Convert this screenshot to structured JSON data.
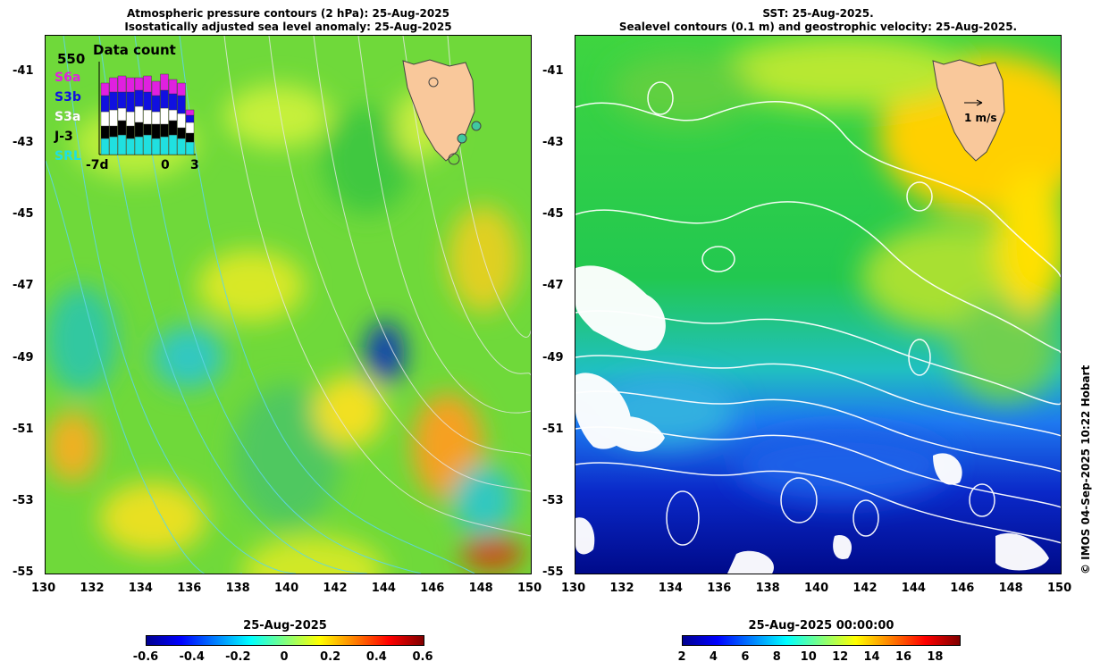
{
  "left_panel": {
    "title_line1": "Atmospheric pressure contours (2 hPa): 25-Aug-2025",
    "title_line2": "Isostatically adjusted sea level anomaly: 25-Aug-2025",
    "inset": {
      "title": "Data count",
      "max_label": "550",
      "missions": [
        {
          "label": "S6a",
          "color": "#e020e0"
        },
        {
          "label": "S3b",
          "color": "#1010e0"
        },
        {
          "label": "S3a",
          "color": "#ffffff"
        },
        {
          "label": "J-3",
          "color": "#000000"
        },
        {
          "label": "SRL",
          "color": "#20e0e0"
        }
      ],
      "x_labels": [
        "-7d",
        "0",
        "3"
      ]
    }
  },
  "right_panel": {
    "title_line1": "SST: 25-Aug-2025.",
    "title_line2": "Sealevel contours (0.1 m) and geostrophic velocity: 25-Aug-2025.",
    "velocity_scale_label": "1 m/s"
  },
  "axes": {
    "lat_labels": [
      "-41",
      "-43",
      "-45",
      "-47",
      "-49",
      "-51",
      "-53",
      "-55"
    ],
    "lon_labels": [
      "130",
      "132",
      "134",
      "136",
      "138",
      "140",
      "142",
      "144",
      "146",
      "148",
      "150"
    ],
    "lat_range": [
      -55,
      -40
    ],
    "lon_range": [
      130,
      150
    ]
  },
  "colorbar_left": {
    "title": "25-Aug-2025",
    "labels": [
      "-0.6",
      "-0.4",
      "-0.2",
      "0",
      "0.2",
      "0.4",
      "0.6"
    ]
  },
  "colorbar_right": {
    "title": "25-Aug-2025 00:00:00",
    "labels": [
      "2",
      "4",
      "6",
      "8",
      "10",
      "12",
      "14",
      "16",
      "18"
    ]
  },
  "credit": "© IMOS 04-Sep-2025 10:22 Hobart",
  "colors": {
    "land": "#f9c89b",
    "jet": [
      "#00008f",
      "#0000ff",
      "#0080ff",
      "#00ffff",
      "#80ff80",
      "#ffff00",
      "#ff8000",
      "#ff0000",
      "#800000"
    ]
  }
}
